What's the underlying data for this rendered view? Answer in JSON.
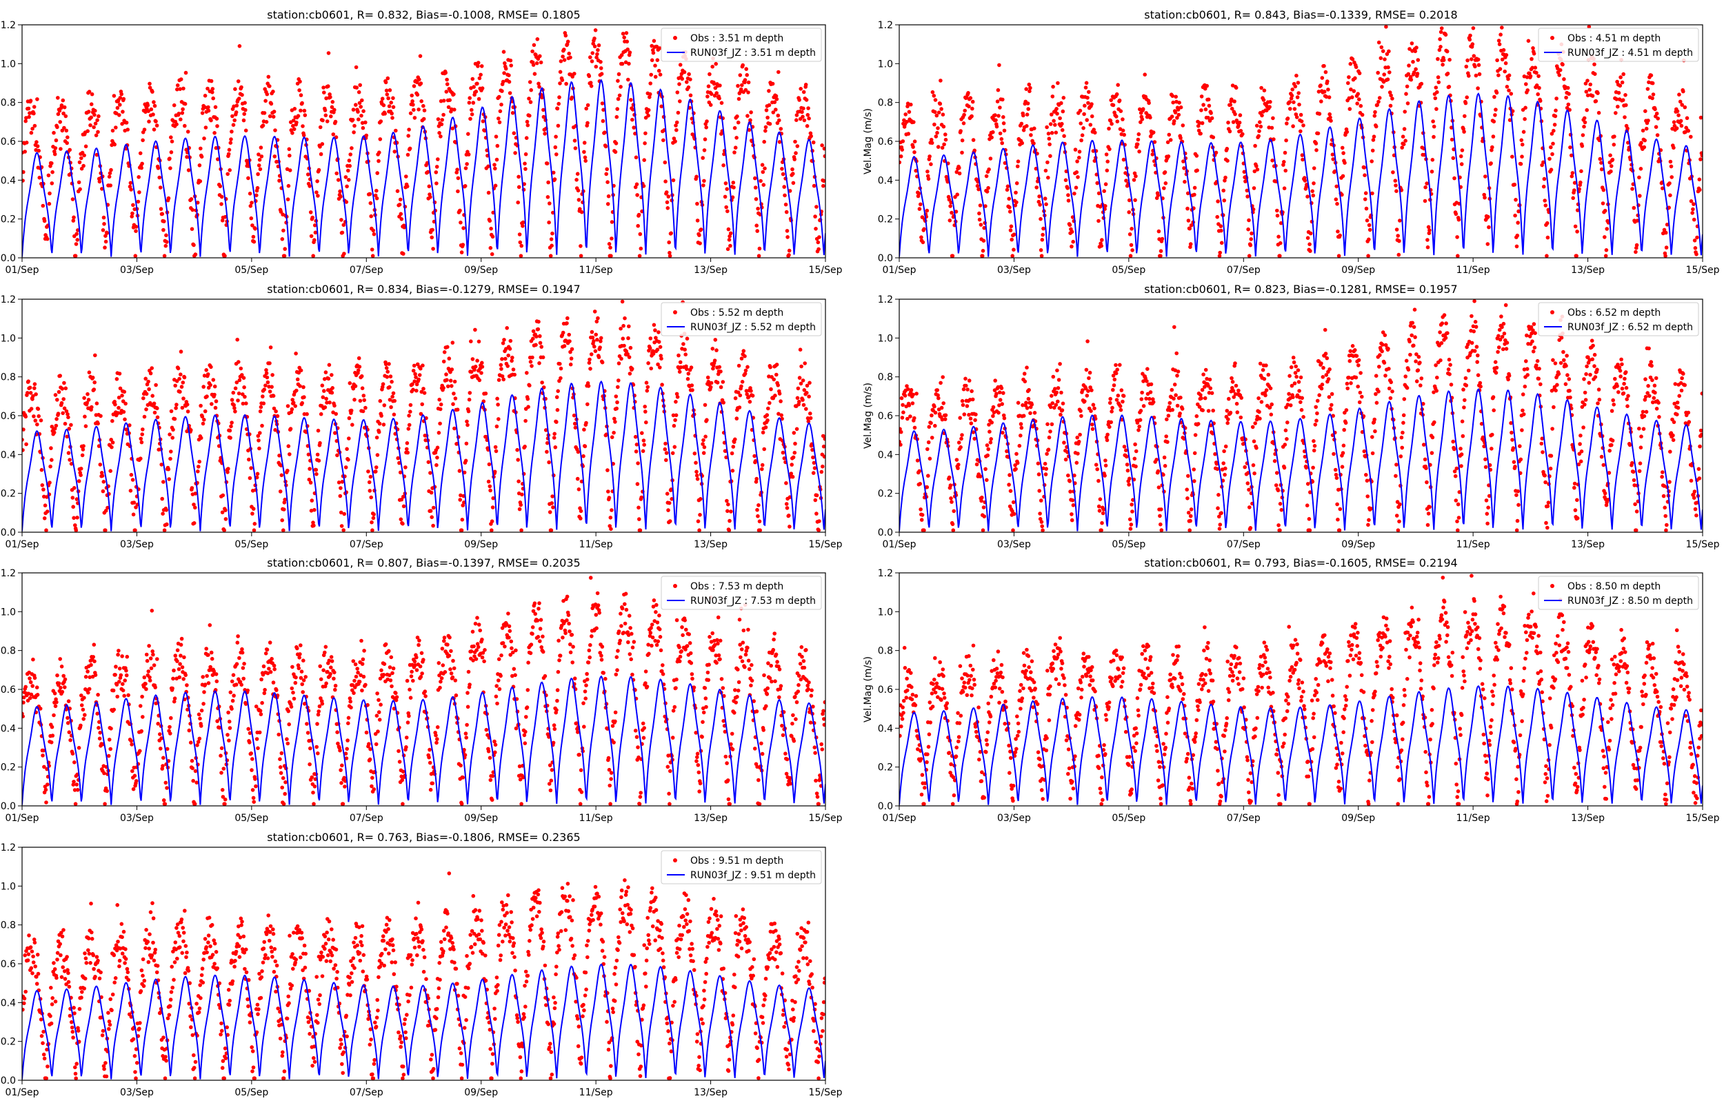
{
  "figure": {
    "x_ticks": [
      "01/Sep",
      "03/Sep",
      "05/Sep",
      "07/Sep",
      "09/Sep",
      "11/Sep",
      "13/Sep",
      "15/Sep"
    ],
    "y_ticks": [
      "0.0",
      "0.2",
      "0.4",
      "0.6",
      "0.8",
      "1.0",
      "1.2"
    ],
    "obs_color": "#ff0000",
    "model_color": "#0000ff"
  },
  "chart_data": [
    {
      "type": "scatter+line",
      "title": "station:cb0601, R= 0.832, Bias=-0.1008, RMSE= 0.1805",
      "ylabel": "",
      "xlim": [
        "2023-09-01",
        "2023-09-15"
      ],
      "ylim": [
        0,
        1.2
      ],
      "legend_position": "top-right",
      "series": [
        {
          "name": "Obs : 3.51 m depth",
          "kind": "scatter",
          "color": "#ff0000",
          "obs_peak": 0.78,
          "obs_peak_rise": 0.26
        },
        {
          "name": "RUN03f_JZ : 3.51 m depth",
          "kind": "line",
          "color": "#0000ff",
          "model_peak": 0.58,
          "model_peak_rise": 0.3
        }
      ]
    },
    {
      "type": "scatter+line",
      "title": "station:cb0601, R= 0.843, Bias=-0.1339, RMSE= 0.2018",
      "ylabel": "Vel.Mag (m/s)",
      "xlim": [
        "2023-09-01",
        "2023-09-15"
      ],
      "ylim": [
        0,
        1.2
      ],
      "legend_position": "top-right",
      "series": [
        {
          "name": "Obs : 4.51 m depth",
          "kind": "scatter",
          "color": "#ff0000",
          "obs_peak": 0.76,
          "obs_peak_rise": 0.3
        },
        {
          "name": "RUN03f_JZ : 4.51 m depth",
          "kind": "line",
          "color": "#0000ff",
          "model_peak": 0.56,
          "model_peak_rise": 0.25
        }
      ]
    },
    {
      "type": "scatter+line",
      "title": "station:cb0601, R= 0.834, Bias=-0.1279, RMSE= 0.1947",
      "ylabel": "",
      "xlim": [
        "2023-09-01",
        "2023-09-15"
      ],
      "ylim": [
        0,
        1.2
      ],
      "legend_position": "top-right",
      "series": [
        {
          "name": "Obs : 5.52 m depth",
          "kind": "scatter",
          "color": "#ff0000",
          "obs_peak": 0.74,
          "obs_peak_rise": 0.26
        },
        {
          "name": "RUN03f_JZ : 5.52 m depth",
          "kind": "line",
          "color": "#0000ff",
          "model_peak": 0.56,
          "model_peak_rise": 0.18
        }
      ]
    },
    {
      "type": "scatter+line",
      "title": "station:cb0601, R= 0.823, Bias=-0.1281, RMSE= 0.1957",
      "ylabel": "Vel.Mag (m/s)",
      "xlim": [
        "2023-09-01",
        "2023-09-15"
      ],
      "ylim": [
        0,
        1.2
      ],
      "legend_position": "top-right",
      "series": [
        {
          "name": "Obs : 6.52 m depth",
          "kind": "scatter",
          "color": "#ff0000",
          "obs_peak": 0.72,
          "obs_peak_rise": 0.28
        },
        {
          "name": "RUN03f_JZ : 6.52 m depth",
          "kind": "line",
          "color": "#0000ff",
          "model_peak": 0.56,
          "model_peak_rise": 0.14
        }
      ]
    },
    {
      "type": "scatter+line",
      "title": "station:cb0601, R= 0.807, Bias=-0.1397, RMSE= 0.2035",
      "ylabel": "",
      "xlim": [
        "2023-09-01",
        "2023-09-15"
      ],
      "ylim": [
        0,
        1.2
      ],
      "legend_position": "top-right",
      "series": [
        {
          "name": "Obs : 7.53 m depth",
          "kind": "scatter",
          "color": "#ff0000",
          "obs_peak": 0.7,
          "obs_peak_rise": 0.26
        },
        {
          "name": "RUN03f_JZ : 7.53 m depth",
          "kind": "line",
          "color": "#0000ff",
          "model_peak": 0.55,
          "model_peak_rise": 0.08
        }
      ]
    },
    {
      "type": "scatter+line",
      "title": "station:cb0601, R= 0.793, Bias=-0.1605, RMSE= 0.2194",
      "ylabel": "Vel.Mag (m/s)",
      "xlim": [
        "2023-09-01",
        "2023-09-15"
      ],
      "ylim": [
        0,
        1.2
      ],
      "legend_position": "top-right",
      "series": [
        {
          "name": "Obs : 8.50 m depth",
          "kind": "scatter",
          "color": "#ff0000",
          "obs_peak": 0.7,
          "obs_peak_rise": 0.24
        },
        {
          "name": "RUN03f_JZ : 8.50 m depth",
          "kind": "line",
          "color": "#0000ff",
          "model_peak": 0.52,
          "model_peak_rise": 0.06
        }
      ]
    },
    {
      "type": "scatter+line",
      "title": "station:cb0601, R= 0.763, Bias=-0.1806, RMSE= 0.2365",
      "ylabel": "",
      "xlim": [
        "2023-09-01",
        "2023-09-15"
      ],
      "ylim": [
        0,
        1.2
      ],
      "legend_position": "top-right",
      "series": [
        {
          "name": "Obs : 9.51 m depth",
          "kind": "scatter",
          "color": "#ff0000",
          "obs_peak": 0.7,
          "obs_peak_rise": 0.2
        },
        {
          "name": "RUN03f_JZ : 9.51 m depth",
          "kind": "line",
          "color": "#0000ff",
          "model_peak": 0.5,
          "model_peak_rise": 0.06
        }
      ]
    }
  ]
}
